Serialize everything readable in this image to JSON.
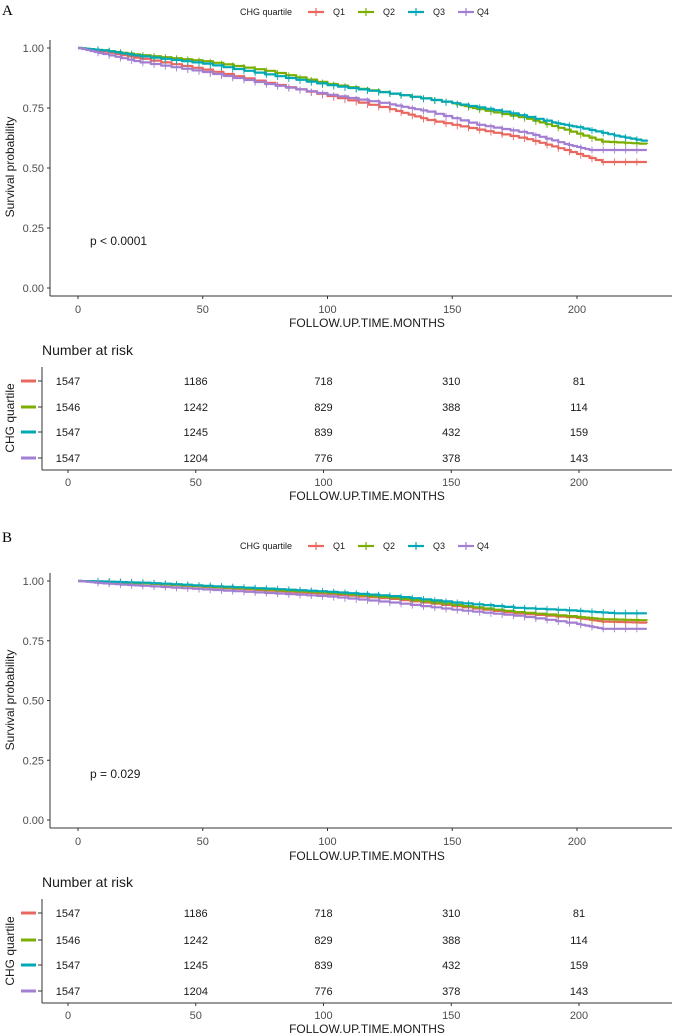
{
  "panels": [
    {
      "letter": "A",
      "legend": {
        "title": "CHG quartile",
        "labels": [
          "Q1",
          "Q2",
          "Q3",
          "Q4"
        ]
      },
      "pvalue": "p < 0.0001",
      "risk_table": {
        "title": "Number at risk",
        "ylabel": "CHG quartile",
        "xlabel": "FOLLOW.UP.TIME.MONTHS",
        "xticks": [
          0,
          50,
          100,
          150,
          200
        ],
        "rows": [
          [
            1547,
            1186,
            718,
            310,
            81
          ],
          [
            1546,
            1242,
            829,
            388,
            114
          ],
          [
            1547,
            1245,
            839,
            432,
            159
          ],
          [
            1547,
            1204,
            776,
            378,
            143
          ]
        ]
      }
    },
    {
      "letter": "B",
      "legend": {
        "title": "CHG quartile",
        "labels": [
          "Q1",
          "Q2",
          "Q3",
          "Q4"
        ]
      },
      "pvalue": "p = 0.029",
      "risk_table": {
        "title": "Number at risk",
        "ylabel": "CHG quartile",
        "xlabel": "FOLLOW.UP.TIME.MONTHS",
        "xticks": [
          0,
          50,
          100,
          150,
          200
        ],
        "rows": [
          [
            1547,
            1186,
            718,
            310,
            81
          ],
          [
            1546,
            1242,
            829,
            388,
            114
          ],
          [
            1547,
            1245,
            839,
            432,
            159
          ],
          [
            1547,
            1204,
            776,
            378,
            143
          ]
        ]
      }
    }
  ],
  "series_colors": [
    "#e8685f",
    "#7cae00",
    "#00a9b5",
    "#a27fd1"
  ],
  "chart_data": [
    {
      "type": "line",
      "xlabel": "FOLLOW.UP.TIME.MONTHS",
      "ylabel": "Survival probability",
      "xlim": [
        0,
        230
      ],
      "ylim": [
        0,
        1
      ],
      "xticks": [
        0,
        50,
        100,
        150,
        200
      ],
      "yticks": [
        "0.00",
        "0.25",
        "0.50",
        "0.75",
        "1.00"
      ],
      "grid": false,
      "legend_position": "top",
      "series": [
        {
          "name": "Q1",
          "x": [
            0,
            10,
            25,
            50,
            75,
            100,
            125,
            140,
            160,
            180,
            195,
            210,
            228
          ],
          "y": [
            1.0,
            0.985,
            0.955,
            0.91,
            0.855,
            0.8,
            0.745,
            0.7,
            0.66,
            0.62,
            0.575,
            0.525,
            0.525
          ]
        },
        {
          "name": "Q2",
          "x": [
            0,
            10,
            25,
            50,
            75,
            100,
            125,
            150,
            160,
            180,
            195,
            210,
            228
          ],
          "y": [
            1.0,
            0.99,
            0.97,
            0.945,
            0.905,
            0.85,
            0.81,
            0.77,
            0.745,
            0.705,
            0.66,
            0.61,
            0.6
          ]
        },
        {
          "name": "Q3",
          "x": [
            0,
            10,
            25,
            50,
            75,
            100,
            125,
            150,
            170,
            190,
            200,
            215,
            228
          ],
          "y": [
            1.0,
            0.99,
            0.965,
            0.935,
            0.89,
            0.845,
            0.81,
            0.77,
            0.735,
            0.69,
            0.67,
            0.635,
            0.61
          ]
        },
        {
          "name": "Q4",
          "x": [
            0,
            10,
            25,
            50,
            75,
            100,
            125,
            140,
            160,
            180,
            195,
            205,
            228
          ],
          "y": [
            1.0,
            0.975,
            0.94,
            0.9,
            0.85,
            0.805,
            0.765,
            0.735,
            0.68,
            0.645,
            0.6,
            0.575,
            0.575
          ]
        }
      ]
    },
    {
      "type": "line",
      "xlabel": "FOLLOW.UP.TIME.MONTHS",
      "ylabel": "Survival probability",
      "xlim": [
        0,
        230
      ],
      "ylim": [
        0,
        1
      ],
      "xticks": [
        0,
        50,
        100,
        150,
        200
      ],
      "yticks": [
        "0.00",
        "0.25",
        "0.50",
        "0.75",
        "1.00"
      ],
      "grid": false,
      "legend_position": "top",
      "series": [
        {
          "name": "Q1",
          "x": [
            0,
            10,
            25,
            50,
            75,
            100,
            125,
            150,
            175,
            200,
            210,
            228
          ],
          "y": [
            1.0,
            0.997,
            0.99,
            0.975,
            0.96,
            0.945,
            0.925,
            0.895,
            0.865,
            0.845,
            0.83,
            0.825
          ]
        },
        {
          "name": "Q2",
          "x": [
            0,
            10,
            25,
            50,
            75,
            100,
            125,
            150,
            175,
            200,
            210,
            228
          ],
          "y": [
            1.0,
            0.997,
            0.99,
            0.977,
            0.963,
            0.95,
            0.93,
            0.9,
            0.87,
            0.85,
            0.84,
            0.835
          ]
        },
        {
          "name": "Q3",
          "x": [
            0,
            10,
            25,
            50,
            75,
            100,
            125,
            150,
            175,
            200,
            215,
            228
          ],
          "y": [
            1.0,
            0.998,
            0.993,
            0.98,
            0.968,
            0.955,
            0.937,
            0.91,
            0.888,
            0.875,
            0.865,
            0.865
          ]
        },
        {
          "name": "Q4",
          "x": [
            0,
            10,
            25,
            50,
            75,
            100,
            125,
            150,
            175,
            200,
            210,
            228
          ],
          "y": [
            1.0,
            0.99,
            0.98,
            0.965,
            0.95,
            0.935,
            0.91,
            0.88,
            0.855,
            0.82,
            0.8,
            0.8
          ]
        }
      ]
    }
  ]
}
